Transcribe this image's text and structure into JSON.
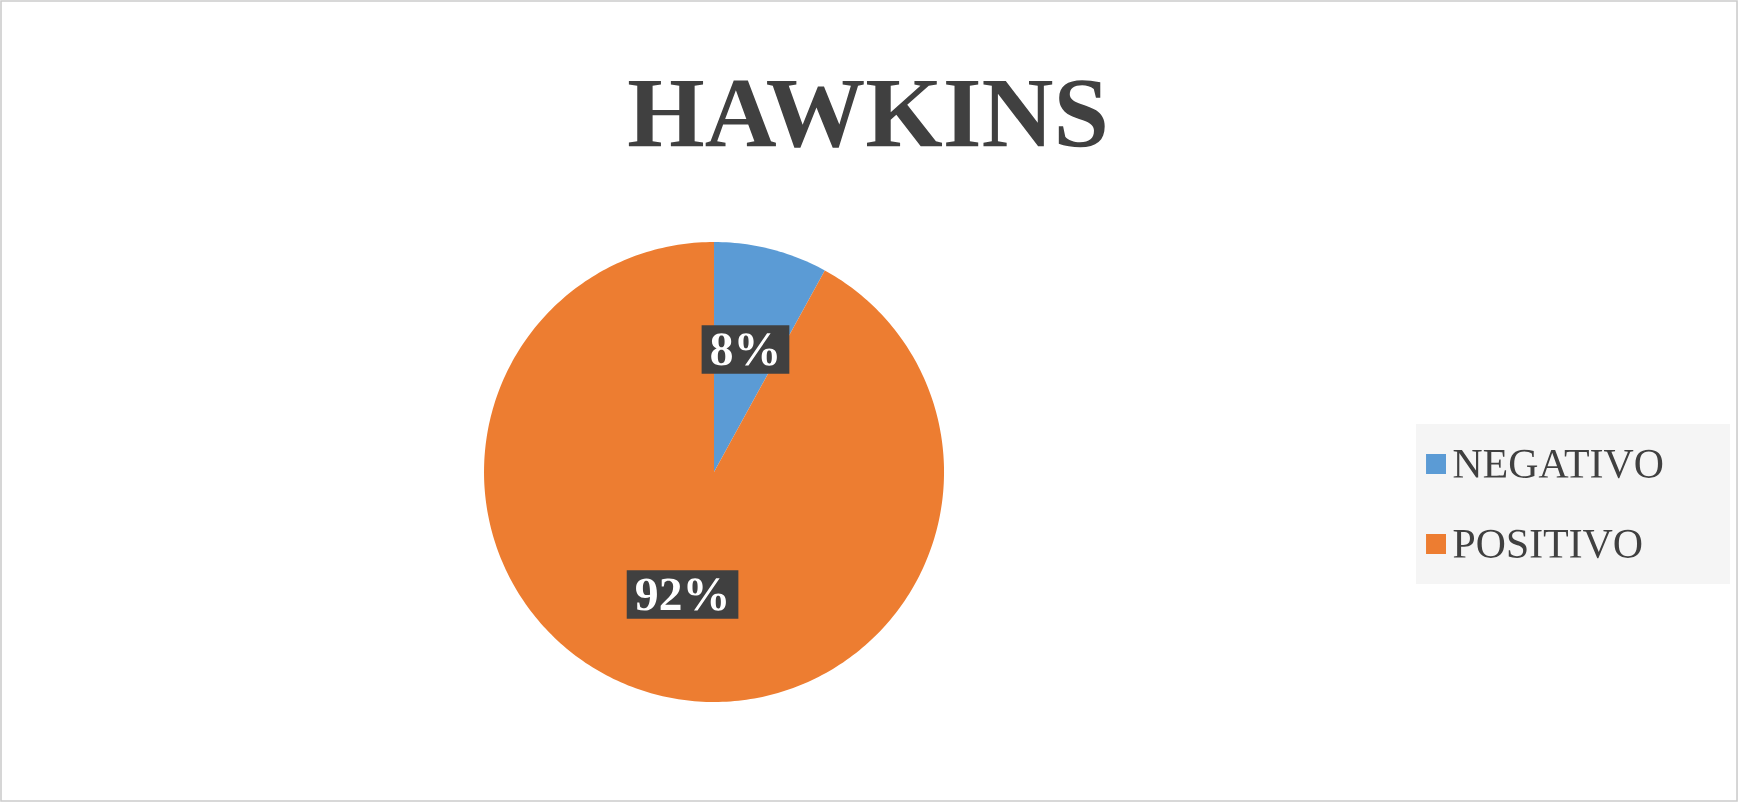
{
  "chart_data": {
    "type": "pie",
    "title": "HAWKINS",
    "categories": [
      "NEGATIVO",
      "POSITIVO"
    ],
    "values": [
      8,
      92
    ],
    "colors": [
      "#5b9bd5",
      "#ed7d31"
    ],
    "value_labels": [
      "8%",
      "92%"
    ],
    "legend": "right"
  }
}
